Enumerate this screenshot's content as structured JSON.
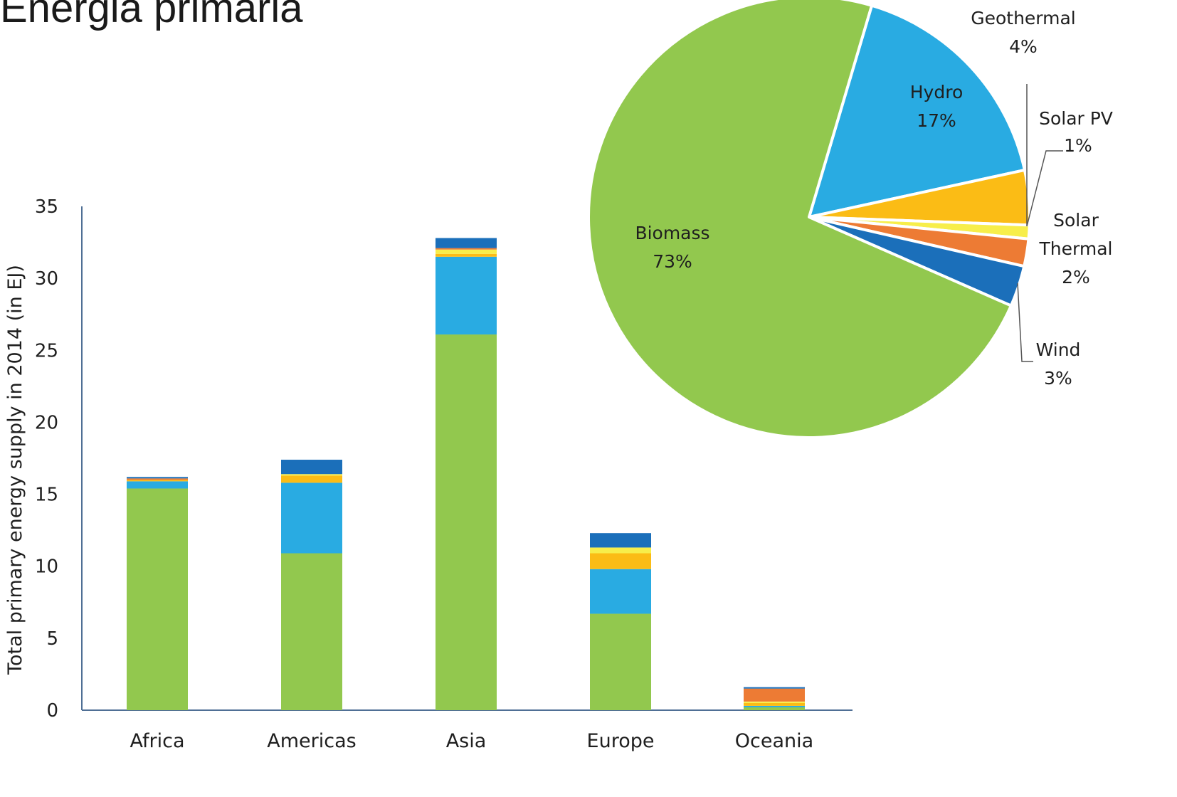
{
  "page": {
    "title": "Energia primaria"
  },
  "chart_data": [
    {
      "type": "bar",
      "stacked": true,
      "ylabel": "Total primary energy supply in 2014 (in EJ)",
      "ylim": [
        0,
        35
      ],
      "yticks": [
        0,
        5,
        10,
        15,
        20,
        25,
        30,
        35
      ],
      "grid": false,
      "categories": [
        "Africa",
        "Americas",
        "Asia",
        "Europe",
        "Oceania"
      ],
      "series": [
        {
          "color": "#92c84e",
          "values": [
            15.4,
            10.9,
            26.1,
            6.7,
            0.2
          ]
        },
        {
          "color": "#29abe2",
          "values": [
            0.5,
            4.9,
            5.4,
            3.1,
            0.1
          ]
        },
        {
          "color": "#fbbc15",
          "values": [
            0.1,
            0.5,
            0.2,
            1.1,
            0.2
          ]
        },
        {
          "color": "#f7ee4a",
          "values": [
            0.0,
            0.1,
            0.3,
            0.4,
            0.1
          ]
        },
        {
          "color": "#ed7b34",
          "values": [
            0.1,
            0.0,
            0.1,
            0.0,
            0.9
          ]
        },
        {
          "color": "#1b6fba",
          "values": [
            0.1,
            1.0,
            0.7,
            1.0,
            0.1
          ]
        }
      ]
    },
    {
      "type": "pie",
      "slices": [
        {
          "name": "Biomass",
          "label": "73%",
          "value": 73,
          "color": "#92c84e"
        },
        {
          "name": "Hydro",
          "label": "17%",
          "value": 17,
          "color": "#29abe2"
        },
        {
          "name": "Geothermal",
          "label": "4%",
          "value": 4,
          "color": "#fbbc15"
        },
        {
          "name": "Solar PV",
          "label": "1%",
          "value": 1,
          "color": "#f7ee4a"
        },
        {
          "name": "Solar Thermal",
          "label": "2%",
          "value": 2,
          "color": "#ed7b34"
        },
        {
          "name": "Wind",
          "label": "3%",
          "value": 3,
          "color": "#1b6fba"
        }
      ]
    }
  ]
}
